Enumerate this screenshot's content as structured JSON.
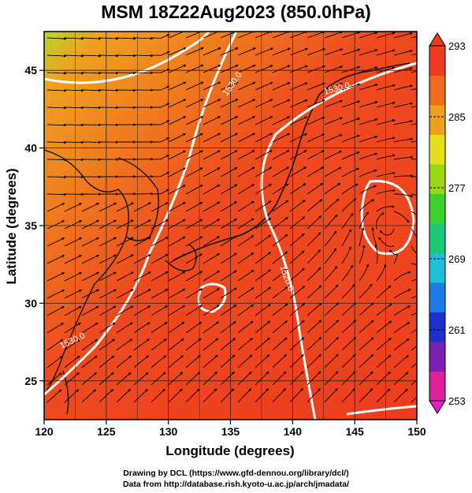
{
  "title": "MSM 18Z22Aug2023 (850.0hPa)",
  "axes": {
    "xlabel": "Longitude (degrees)",
    "ylabel": "Latitude  (degrees)",
    "xticks": [
      "120",
      "125",
      "130",
      "135",
      "140",
      "145",
      "150"
    ],
    "yticks": [
      "25",
      "30",
      "35",
      "40",
      "45"
    ],
    "x_range": [
      120,
      150
    ],
    "y_range": [
      22.5,
      47.5
    ]
  },
  "colorbar": {
    "ticks": [
      "293",
      "285",
      "277",
      "269",
      "261",
      "253"
    ],
    "range": [
      253,
      293
    ],
    "colors": [
      "#e0209a",
      "#7a1fb0",
      "#1e2fd0",
      "#1e7be6",
      "#1ebfd8",
      "#1ec87a",
      "#3cd22a",
      "#9ad614",
      "#e6e01c",
      "#f0a020",
      "#f06a1c",
      "#ee3a1e"
    ]
  },
  "contour_labels": [
    "1530.0",
    "1530.0",
    "1520.0",
    "1530.0"
  ],
  "credits": {
    "line1": "Drawing by DCL (https://www.gfd-dennou.org/library/dcl/)",
    "line2": "Data from http://database.rish.kyoto-u.ac.jp/arch/jmadata/"
  }
}
